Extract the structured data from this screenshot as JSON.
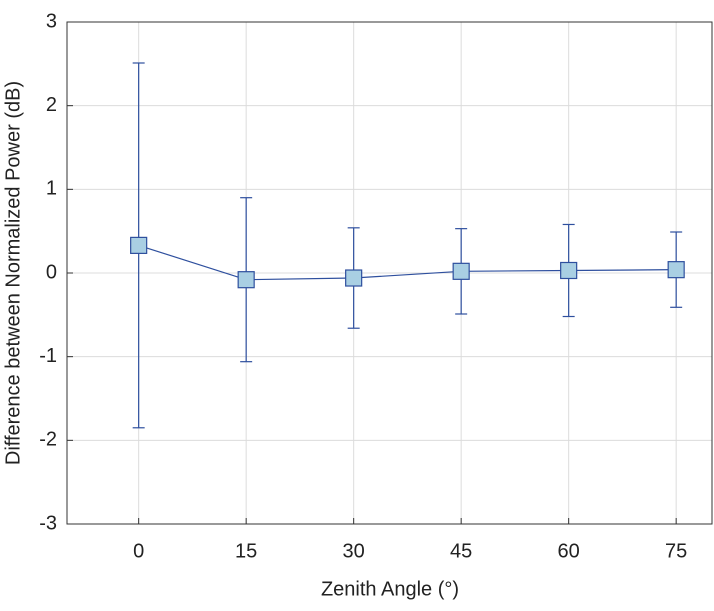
{
  "chart_data": {
    "type": "errorbar",
    "x_label": "Zenith Angle (°)",
    "y_label": "Difference between Normalized Power (dB)",
    "x": [
      0,
      15,
      30,
      45,
      60,
      75
    ],
    "series": [
      {
        "values": [
          0.33,
          -0.08,
          -0.06,
          0.02,
          0.03,
          0.04
        ],
        "errors": [
          2.18,
          0.98,
          0.6,
          0.51,
          0.55,
          0.45
        ],
        "color": "#2e4f9e",
        "marker_color": "#a9cfe3"
      }
    ],
    "xlim": [
      -10,
      80
    ],
    "xticks": [
      0,
      15,
      30,
      45,
      60,
      75
    ],
    "ylim": [
      -3,
      3
    ],
    "yticks": [
      -3,
      -2,
      -1,
      0,
      1,
      2,
      3
    ],
    "grid": true
  }
}
